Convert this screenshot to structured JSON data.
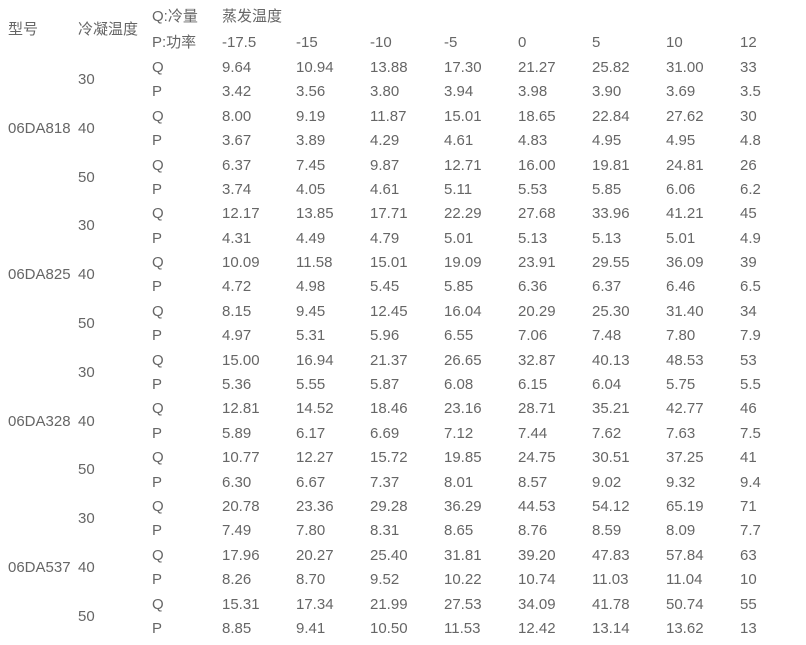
{
  "colors": {
    "background": "#ffffff",
    "text": "#666666"
  },
  "header": {
    "model_label": "型号",
    "cond_temp_label": "冷凝温度",
    "q_label": "Q:冷量",
    "p_label": "P:功率",
    "evap_temp_label": "蒸发温度",
    "evap_temps": [
      "-17.5",
      "-15",
      "-10",
      "-5",
      "0",
      "5",
      "10",
      "12"
    ]
  },
  "row_labels": {
    "q": "Q",
    "p": "P"
  },
  "models": [
    {
      "model": "06DA818",
      "groups": [
        {
          "cond_temp": "30",
          "q": [
            "9.64",
            "10.94",
            "13.88",
            "17.30",
            "21.27",
            "25.82",
            "31.00",
            "33"
          ],
          "p": [
            "3.42",
            "3.56",
            "3.80",
            "3.94",
            "3.98",
            "3.90",
            "3.69",
            "3.5"
          ]
        },
        {
          "cond_temp": "40",
          "q": [
            "8.00",
            "9.19",
            "11.87",
            "15.01",
            "18.65",
            "22.84",
            "27.62",
            "30"
          ],
          "p": [
            "3.67",
            "3.89",
            "4.29",
            "4.61",
            "4.83",
            "4.95",
            "4.95",
            "4.8"
          ]
        },
        {
          "cond_temp": "50",
          "q": [
            "6.37",
            "7.45",
            "9.87",
            "12.71",
            "16.00",
            "19.81",
            "24.81",
            "26"
          ],
          "p": [
            "3.74",
            "4.05",
            "4.61",
            "5.11",
            "5.53",
            "5.85",
            "6.06",
            "6.2"
          ]
        }
      ]
    },
    {
      "model": "06DA825",
      "groups": [
        {
          "cond_temp": "30",
          "q": [
            "12.17",
            "13.85",
            "17.71",
            "22.29",
            "27.68",
            "33.96",
            "41.21",
            "45"
          ],
          "p": [
            "4.31",
            "4.49",
            "4.79",
            "5.01",
            "5.13",
            "5.13",
            "5.01",
            "4.9"
          ]
        },
        {
          "cond_temp": "40",
          "q": [
            "10.09",
            "11.58",
            "15.01",
            "19.09",
            "23.91",
            "29.55",
            "36.09",
            "39"
          ],
          "p": [
            "4.72",
            "4.98",
            "5.45",
            "5.85",
            "6.36",
            "6.37",
            "6.46",
            "6.5"
          ]
        },
        {
          "cond_temp": "50",
          "q": [
            "8.15",
            "9.45",
            "12.45",
            "16.04",
            "20.29",
            "25.30",
            "31.40",
            "34"
          ],
          "p": [
            "4.97",
            "5.31",
            "5.96",
            "6.55",
            "7.06",
            "7.48",
            "7.80",
            "7.9"
          ]
        }
      ]
    },
    {
      "model": "06DA328",
      "groups": [
        {
          "cond_temp": "30",
          "q": [
            "15.00",
            "16.94",
            "21.37",
            "26.65",
            "32.87",
            "40.13",
            "48.53",
            "53"
          ],
          "p": [
            "5.36",
            "5.55",
            "5.87",
            "6.08",
            "6.15",
            "6.04",
            "5.75",
            "5.5"
          ]
        },
        {
          "cond_temp": "40",
          "q": [
            "12.81",
            "14.52",
            "18.46",
            "23.16",
            "28.71",
            "35.21",
            "42.77",
            "46"
          ],
          "p": [
            "5.89",
            "6.17",
            "6.69",
            "7.12",
            "7.44",
            "7.62",
            "7.63",
            "7.5"
          ]
        },
        {
          "cond_temp": "50",
          "q": [
            "10.77",
            "12.27",
            "15.72",
            "19.85",
            "24.75",
            "30.51",
            "37.25",
            "41"
          ],
          "p": [
            "6.30",
            "6.67",
            "7.37",
            "8.01",
            "8.57",
            "9.02",
            "9.32",
            "9.4"
          ]
        }
      ]
    },
    {
      "model": "06DA537",
      "groups": [
        {
          "cond_temp": "30",
          "q": [
            "20.78",
            "23.36",
            "29.28",
            "36.29",
            "44.53",
            "54.12",
            "65.19",
            "71"
          ],
          "p": [
            "7.49",
            "7.80",
            "8.31",
            "8.65",
            "8.76",
            "8.59",
            "8.09",
            "7.7"
          ]
        },
        {
          "cond_temp": "40",
          "q": [
            "17.96",
            "20.27",
            "25.40",
            "31.81",
            "39.20",
            "47.83",
            "57.84",
            "63"
          ],
          "p": [
            "8.26",
            "8.70",
            "9.52",
            "10.22",
            "10.74",
            "11.03",
            "11.04",
            "10"
          ]
        },
        {
          "cond_temp": "50",
          "q": [
            "15.31",
            "17.34",
            "21.99",
            "27.53",
            "34.09",
            "41.78",
            "50.74",
            "55"
          ],
          "p": [
            "8.85",
            "9.41",
            "10.50",
            "11.53",
            "12.42",
            "13.14",
            "13.62",
            "13"
          ]
        }
      ]
    }
  ]
}
